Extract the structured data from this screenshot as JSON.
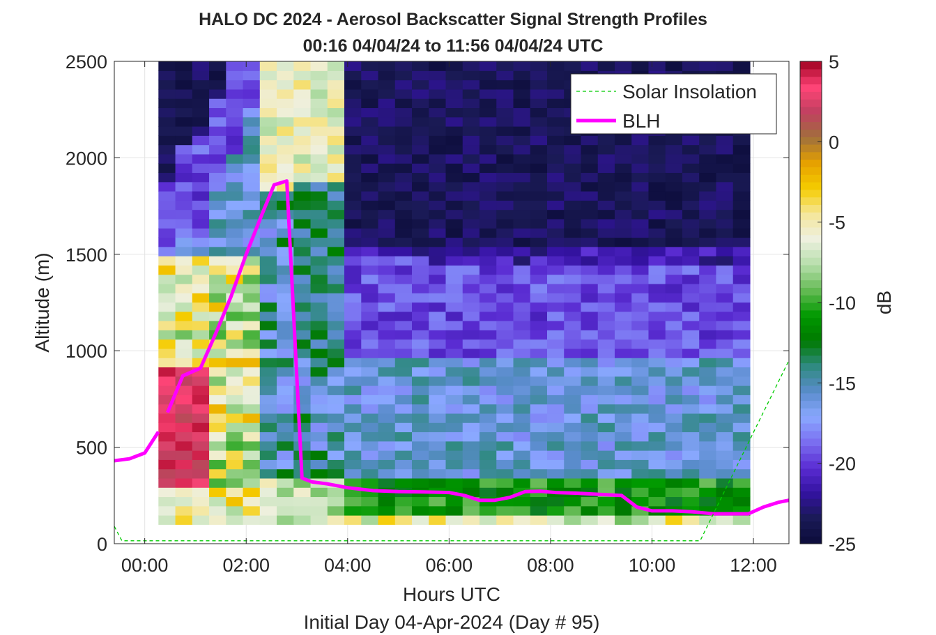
{
  "chart_data": {
    "type": "heatmap",
    "title": "HALO DC 2024 - Aerosol Backscatter Signal Strength Profiles",
    "subtitle": "00:16 04/04/24 to 11:56 04/04/24  UTC",
    "xlabel": "Hours UTC",
    "xlabel2": "Initial Day 04-Apr-2024 (Day # 95)",
    "ylabel": "Altitude (m)",
    "colorbar_label": "dB",
    "xlim": [
      -0.6,
      12.7
    ],
    "ylim": [
      0,
      2500
    ],
    "clim": [
      -25,
      5
    ],
    "x_ticks": [
      0,
      2,
      4,
      6,
      8,
      10,
      12
    ],
    "x_tick_labels": [
      "00:00",
      "02:00",
      "04:00",
      "06:00",
      "08:00",
      "10:00",
      "12:00"
    ],
    "y_ticks": [
      0,
      500,
      1000,
      1500,
      2000,
      2500
    ],
    "y_tick_labels": [
      "0",
      "500",
      "1000",
      "1500",
      "2000",
      "2500"
    ],
    "colorbar_ticks": [
      5,
      0,
      -5,
      -10,
      -15,
      -20,
      -25
    ],
    "colorbar_tick_labels": [
      "5",
      "0",
      "-5",
      "-10",
      "-15",
      "-20",
      "-25"
    ],
    "grid": true,
    "legend_position": "top-right",
    "legend": [
      {
        "name": "Solar Insolation",
        "color": "#00cc00",
        "style": "dashed"
      },
      {
        "name": "BLH",
        "color": "#ff00ff",
        "style": "solid"
      }
    ],
    "heatmap": {
      "x_start": 0.27,
      "x_end": 11.93,
      "y_start": 100,
      "y_end": 2500,
      "n_columns": 35,
      "n_rows": 50,
      "value_units": "dB"
    },
    "series": [
      {
        "name": "BLH",
        "color": "#ff00ff",
        "segments": [
          {
            "x": [
              -0.6,
              -0.3,
              0.0,
              0.27
            ],
            "y": [
              430,
              440,
              470,
              580
            ]
          },
          {
            "x": [
              0.45,
              0.75,
              1.1,
              1.4,
              1.7,
              2.0,
              2.3,
              2.55,
              2.8,
              3.1,
              3.3,
              3.6,
              4.0,
              4.5,
              5.0,
              5.5,
              6.0,
              6.3,
              6.6,
              6.9,
              7.2,
              7.5,
              7.8,
              8.1,
              8.5,
              9.0,
              9.4,
              9.7,
              10.0,
              10.4,
              10.8,
              11.2,
              11.5,
              11.9,
              12.2,
              12.5,
              12.7
            ],
            "y": [
              680,
              870,
              910,
              1090,
              1280,
              1500,
              1700,
              1860,
              1880,
              340,
              320,
              310,
              290,
              275,
              270,
              268,
              265,
              250,
              225,
              225,
              240,
              270,
              272,
              265,
              262,
              255,
              250,
              190,
              170,
              170,
              165,
              155,
              155,
              155,
              190,
              215,
              225
            ]
          }
        ]
      },
      {
        "name": "Solar Insolation",
        "color": "#00cc00",
        "x": [
          -0.6,
          -0.45,
          10.95,
          11.95,
          12.7
        ],
        "y": [
          90,
          15,
          15,
          550,
          950
        ]
      }
    ],
    "colors": {
      "colormap": [
        "#0c0c3a",
        "#1a1a55",
        "#3312a0",
        "#5a2cd2",
        "#7a6ef0",
        "#8aa8ff",
        "#5a8ccc",
        "#2f8a80",
        "#007a00",
        "#009900",
        "#66bb55",
        "#b5deaa",
        "#eef0e0",
        "#f5e69a",
        "#f5cc00",
        "#e6a100",
        "#a0703c",
        "#c04060",
        "#ff4477",
        "#a00020"
      ],
      "blh_line": "#ff00ff",
      "solar_line": "#00cc00"
    }
  }
}
